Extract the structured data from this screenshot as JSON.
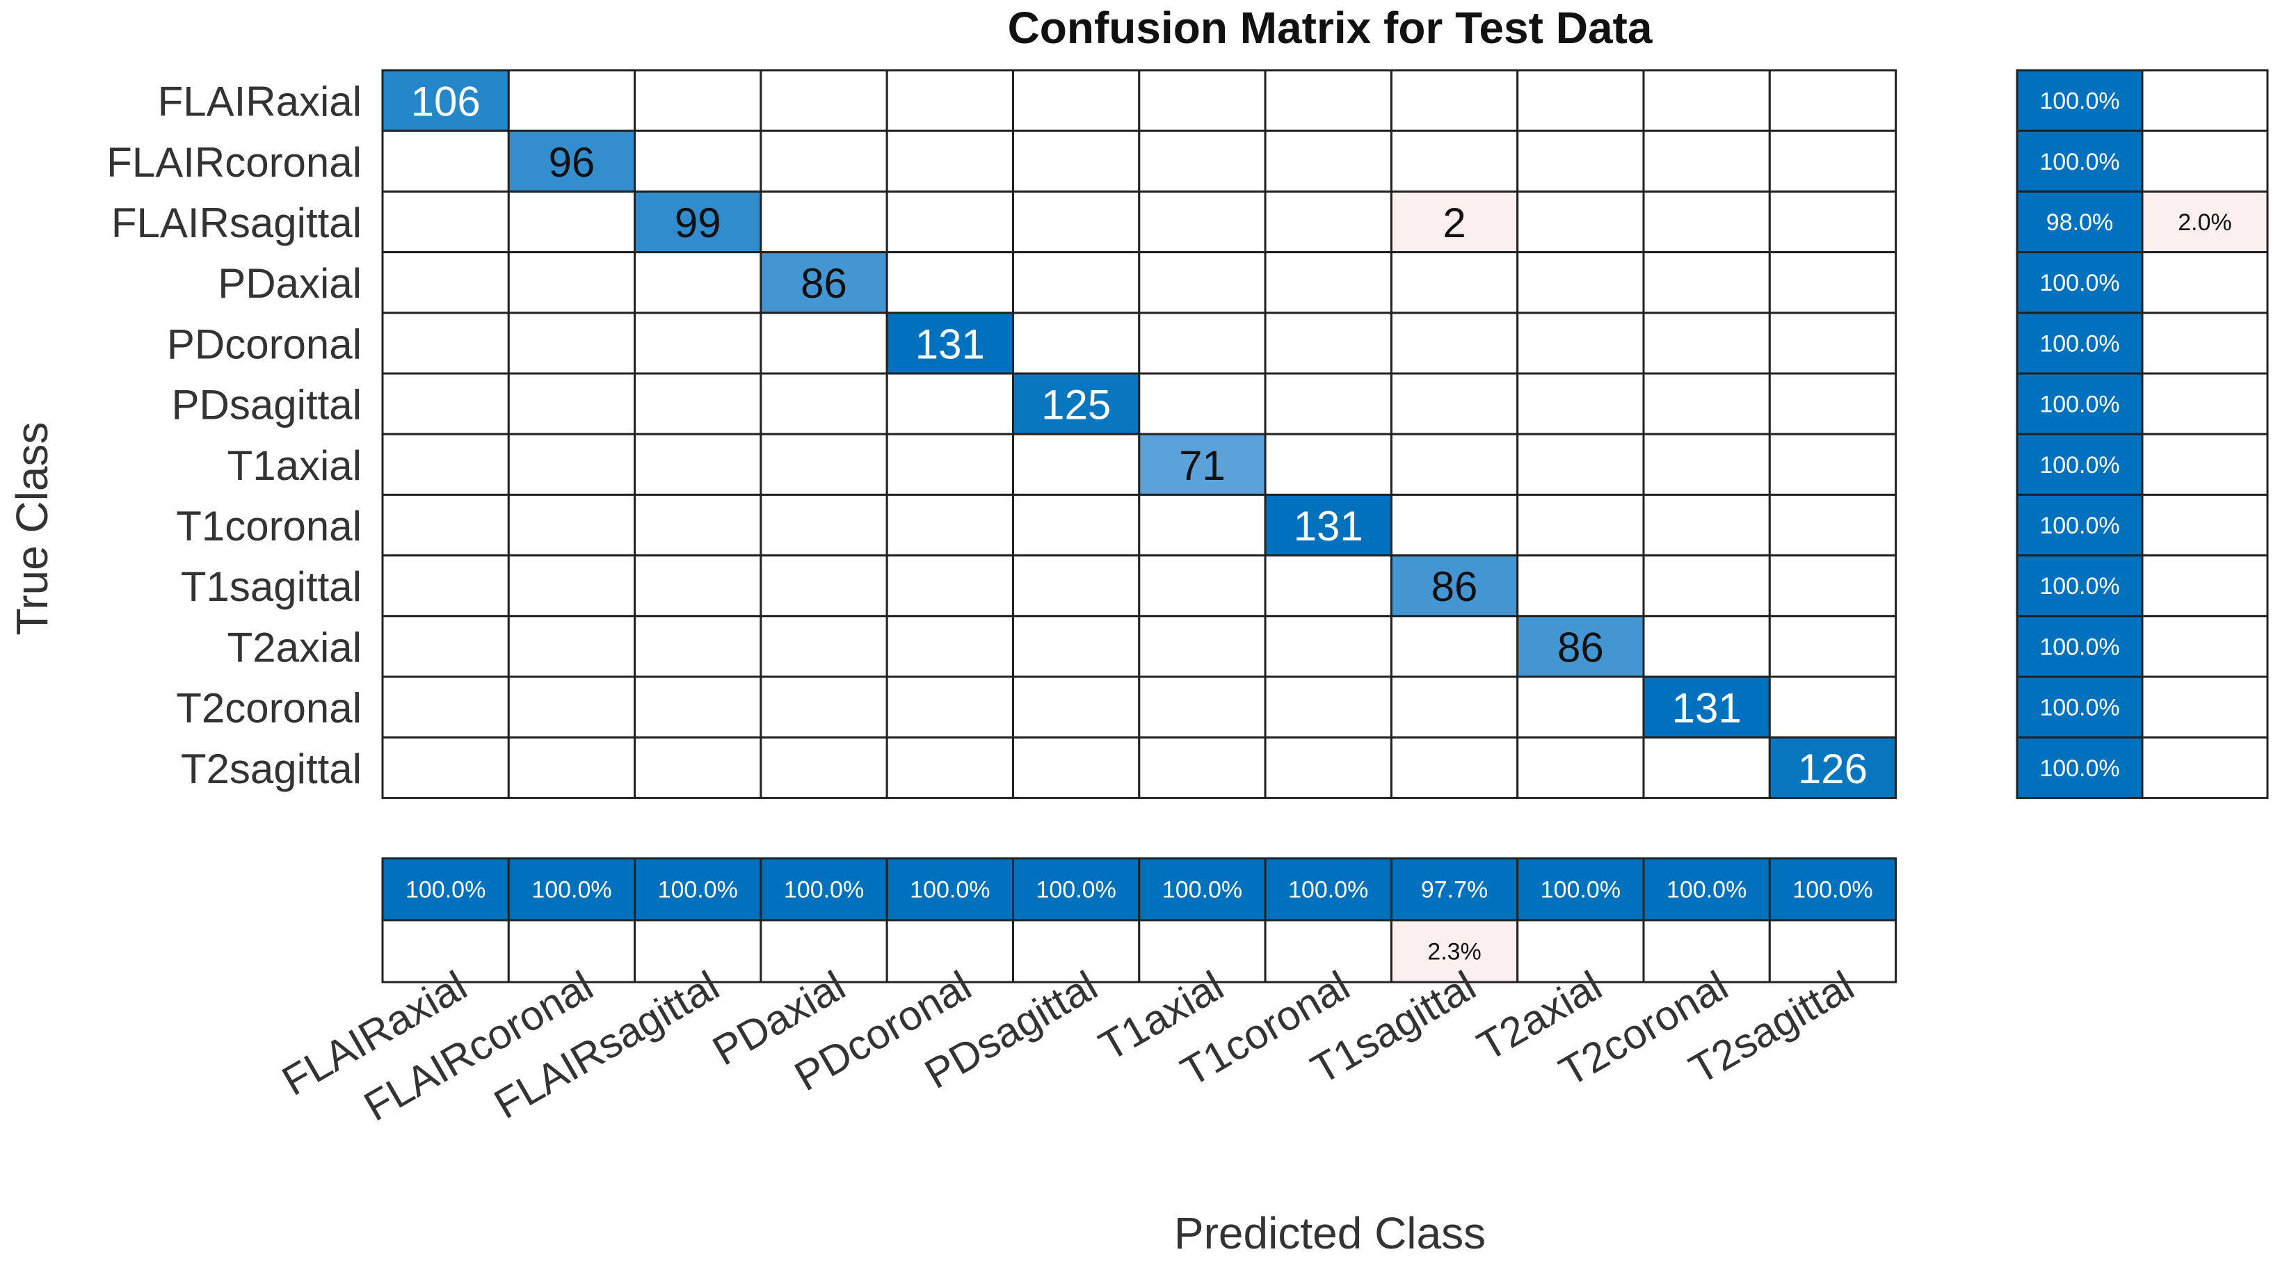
{
  "chart_data": {
    "type": "heatmap",
    "title": "Confusion Matrix for Test Data",
    "xlabel": "Predicted Class",
    "ylabel": "True Class",
    "classes": [
      "FLAIRaxial",
      "FLAIRcoronal",
      "FLAIRsagittal",
      "PDaxial",
      "PDcoronal",
      "PDsagittal",
      "T1axial",
      "T1coronal",
      "T1sagittal",
      "T2axial",
      "T2coronal",
      "T2sagittal"
    ],
    "matrix": [
      [
        106,
        0,
        0,
        0,
        0,
        0,
        0,
        0,
        0,
        0,
        0,
        0
      ],
      [
        0,
        96,
        0,
        0,
        0,
        0,
        0,
        0,
        0,
        0,
        0,
        0
      ],
      [
        0,
        0,
        99,
        0,
        0,
        0,
        0,
        0,
        2,
        0,
        0,
        0
      ],
      [
        0,
        0,
        0,
        86,
        0,
        0,
        0,
        0,
        0,
        0,
        0,
        0
      ],
      [
        0,
        0,
        0,
        0,
        131,
        0,
        0,
        0,
        0,
        0,
        0,
        0
      ],
      [
        0,
        0,
        0,
        0,
        0,
        125,
        0,
        0,
        0,
        0,
        0,
        0
      ],
      [
        0,
        0,
        0,
        0,
        0,
        0,
        71,
        0,
        0,
        0,
        0,
        0
      ],
      [
        0,
        0,
        0,
        0,
        0,
        0,
        0,
        131,
        0,
        0,
        0,
        0
      ],
      [
        0,
        0,
        0,
        0,
        0,
        0,
        0,
        0,
        86,
        0,
        0,
        0
      ],
      [
        0,
        0,
        0,
        0,
        0,
        0,
        0,
        0,
        0,
        86,
        0,
        0
      ],
      [
        0,
        0,
        0,
        0,
        0,
        0,
        0,
        0,
        0,
        0,
        131,
        0
      ],
      [
        0,
        0,
        0,
        0,
        0,
        0,
        0,
        0,
        0,
        0,
        0,
        126
      ]
    ],
    "row_summary": {
      "correct": [
        "100.0%",
        "100.0%",
        "98.0%",
        "100.0%",
        "100.0%",
        "100.0%",
        "100.0%",
        "100.0%",
        "100.0%",
        "100.0%",
        "100.0%",
        "100.0%"
      ],
      "incorrect": [
        "",
        "",
        "2.0%",
        "",
        "",
        "",
        "",
        "",
        "",
        "",
        "",
        ""
      ]
    },
    "column_summary": {
      "correct": [
        "100.0%",
        "100.0%",
        "100.0%",
        "100.0%",
        "100.0%",
        "100.0%",
        "100.0%",
        "100.0%",
        "97.7%",
        "100.0%",
        "100.0%",
        "100.0%"
      ],
      "incorrect": [
        "",
        "",
        "",
        "",
        "",
        "",
        "",
        "",
        "2.3%",
        "",
        "",
        ""
      ]
    },
    "colors": {
      "correct_dark": "#0072BD",
      "correct_light": "#6AABDE",
      "incorrect_light": "#FCF0EE",
      "grid": "#222222"
    }
  }
}
